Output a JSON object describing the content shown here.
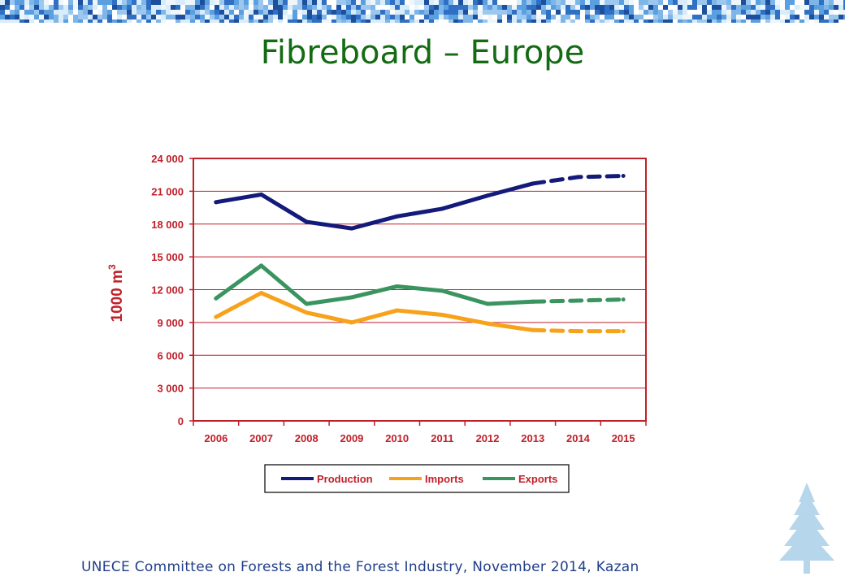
{
  "slide": {
    "title": "Fibreboard – Europe",
    "footer": "UNECE Committee on Forests and the Forest Industry, November 2014, Kazan"
  },
  "colors": {
    "title": "#146b14",
    "footer": "#1f3f8a",
    "axis": "#c0202a",
    "banner": "#3c7fd0"
  },
  "decor": {
    "banner": "blue-mosaic-banner",
    "tree": "tree-logo-icon"
  },
  "chart_data": {
    "type": "line",
    "title": "",
    "ylabel": "1000 m",
    "ylabel_sup": "3",
    "ylim": [
      0,
      24000
    ],
    "yticks": [
      0,
      3000,
      6000,
      9000,
      12000,
      15000,
      18000,
      21000,
      24000
    ],
    "ytick_labels": [
      "0",
      "3 000",
      "6 000",
      "9 000",
      "12 000",
      "15 000",
      "18 000",
      "21 000",
      "24 000"
    ],
    "categories": [
      "2006",
      "2007",
      "2008",
      "2009",
      "2010",
      "2011",
      "2012",
      "2013",
      "2014",
      "2015"
    ],
    "forecast_from": "2013",
    "grid": true,
    "legend_position": "bottom",
    "series": [
      {
        "name": "Production",
        "color": "#141a7a",
        "values": [
          20000,
          20700,
          18200,
          17600,
          18700,
          19400,
          20600,
          21700,
          22300,
          22400
        ]
      },
      {
        "name": "Imports",
        "color": "#f7a21b",
        "values": [
          9500,
          11700,
          9900,
          9000,
          10100,
          9700,
          8900,
          8300,
          8200,
          8200
        ]
      },
      {
        "name": "Exports",
        "color": "#3a9460",
        "values": [
          11200,
          14200,
          10700,
          11300,
          12300,
          11900,
          10700,
          10900,
          11000,
          11100
        ]
      }
    ]
  }
}
